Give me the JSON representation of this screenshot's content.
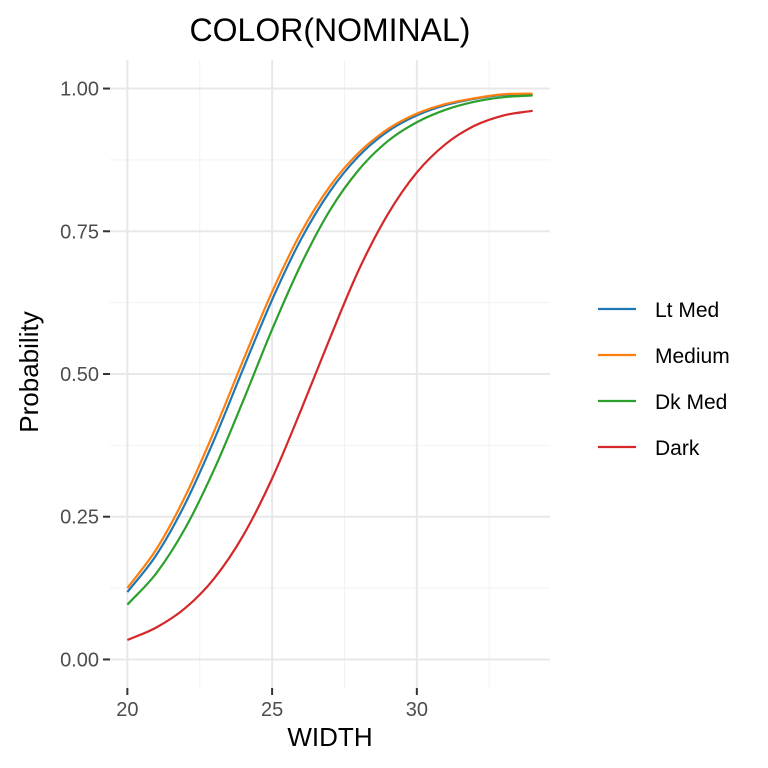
{
  "chart_data": {
    "type": "line",
    "title": "COLOR(NOMINAL)",
    "xlabel": "WIDTH",
    "ylabel": "Probability",
    "xlim": [
      19.4,
      34.6
    ],
    "ylim": [
      -0.05,
      1.05
    ],
    "x_ticks": [
      20,
      25,
      30
    ],
    "y_ticks": [
      0,
      0.25,
      0.5,
      0.75,
      1.0
    ],
    "x_tick_labels": [
      "20",
      "25",
      "30"
    ],
    "y_tick_labels": [
      "0.00",
      "0.25",
      "0.50",
      "0.75",
      "1.00"
    ],
    "grid": true,
    "legend_position": "right",
    "x": [
      20,
      21,
      22,
      23,
      24,
      25,
      26,
      27,
      28,
      29,
      30,
      31,
      32,
      33,
      34
    ],
    "series": [
      {
        "name": "Lt Med",
        "color": "#1f77b4",
        "values": [
          0.118,
          0.183,
          0.273,
          0.385,
          0.509,
          0.63,
          0.736,
          0.82,
          0.882,
          0.925,
          0.953,
          0.971,
          0.982,
          0.989,
          0.99
        ]
      },
      {
        "name": "Medium",
        "color": "#ff7f0e",
        "values": [
          0.125,
          0.193,
          0.286,
          0.4,
          0.524,
          0.644,
          0.748,
          0.829,
          0.888,
          0.929,
          0.956,
          0.973,
          0.983,
          0.99,
          0.991
        ]
      },
      {
        "name": "Dk Med",
        "color": "#2ca02c",
        "values": [
          0.096,
          0.151,
          0.23,
          0.333,
          0.453,
          0.578,
          0.692,
          0.787,
          0.858,
          0.908,
          0.941,
          0.963,
          0.977,
          0.985,
          0.988
        ]
      },
      {
        "name": "Dark",
        "color": "#d62728",
        "values": [
          0.034,
          0.056,
          0.09,
          0.142,
          0.217,
          0.317,
          0.437,
          0.563,
          0.683,
          0.78,
          0.853,
          0.903,
          0.935,
          0.953,
          0.961
        ]
      }
    ]
  }
}
